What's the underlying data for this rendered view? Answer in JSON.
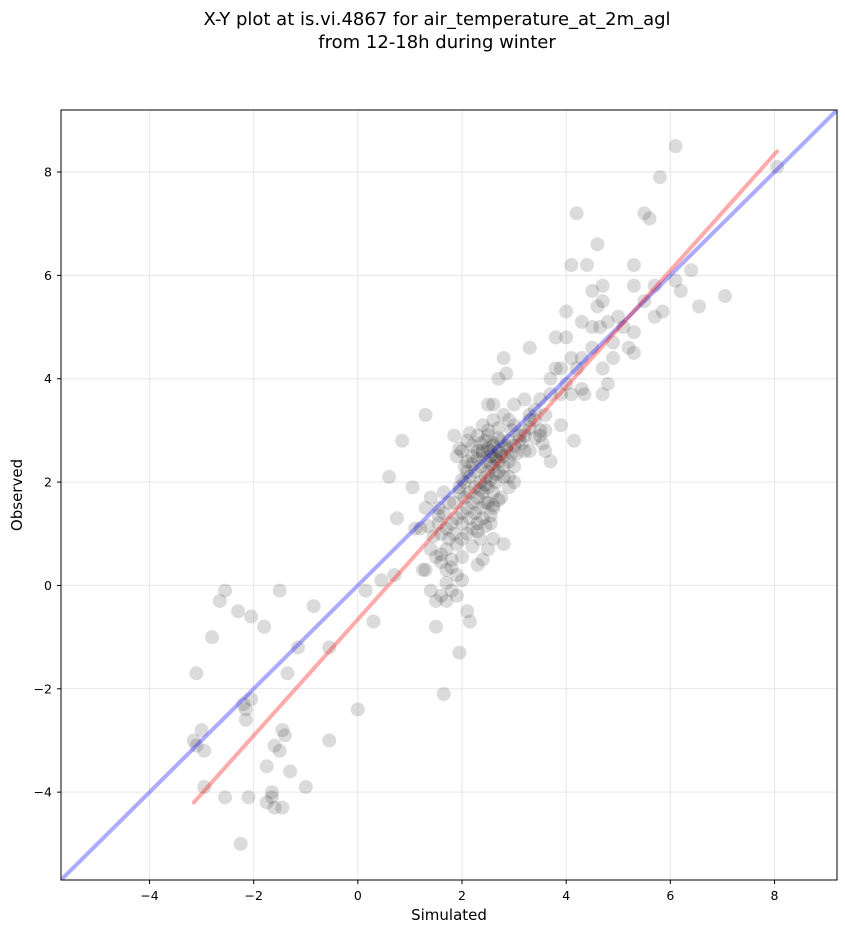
{
  "chart_data": {
    "type": "scatter",
    "title_line1": "X-Y plot at is.vi.4867 for air_temperature_at_2m_agl",
    "title_line2": "from 12-18h during winter",
    "xlabel": "Simulated",
    "ylabel": "Observed",
    "xlim": [
      -5.7,
      9.2
    ],
    "ylim": [
      -5.7,
      9.2
    ],
    "xticks": [
      -4,
      -2,
      0,
      2,
      4,
      6,
      8
    ],
    "yticks": [
      -4,
      -2,
      0,
      2,
      4,
      6,
      8
    ],
    "xtick_labels": [
      "−4",
      "−2",
      "0",
      "2",
      "4",
      "6",
      "8"
    ],
    "ytick_labels": [
      "−4",
      "−2",
      "0",
      "2",
      "4",
      "6",
      "8"
    ],
    "grid": true,
    "colors": {
      "points": "#000000",
      "identity_line": "#0000ff",
      "fit_line": "#ff0000"
    },
    "identity_line": {
      "x": [
        -5.7,
        9.2
      ],
      "y": [
        -5.7,
        9.2
      ]
    },
    "fit_line": {
      "x": [
        -3.15,
        8.05
      ],
      "y": [
        -4.2,
        8.4
      ]
    },
    "points": [
      [
        6.1,
        8.5
      ],
      [
        8.05,
        8.1
      ],
      [
        5.8,
        7.9
      ],
      [
        4.2,
        7.2
      ],
      [
        5.5,
        7.2
      ],
      [
        5.6,
        7.1
      ],
      [
        4.6,
        6.6
      ],
      [
        4.1,
        6.2
      ],
      [
        4.4,
        6.2
      ],
      [
        5.3,
        6.2
      ],
      [
        6.4,
        6.1
      ],
      [
        6.1,
        5.9
      ],
      [
        4.7,
        5.8
      ],
      [
        5.3,
        5.8
      ],
      [
        5.7,
        5.8
      ],
      [
        6.2,
        5.7
      ],
      [
        4.5,
        5.7
      ],
      [
        7.05,
        5.6
      ],
      [
        4.7,
        5.5
      ],
      [
        5.5,
        5.5
      ],
      [
        6.55,
        5.4
      ],
      [
        4.6,
        5.4
      ],
      [
        4.0,
        5.3
      ],
      [
        5.85,
        5.3
      ],
      [
        5.0,
        5.2
      ],
      [
        5.7,
        5.2
      ],
      [
        4.3,
        5.1
      ],
      [
        4.8,
        5.1
      ],
      [
        4.5,
        5.0
      ],
      [
        4.65,
        5.0
      ],
      [
        5.1,
        5.0
      ],
      [
        4.0,
        4.8
      ],
      [
        3.8,
        4.8
      ],
      [
        5.3,
        4.9
      ],
      [
        4.9,
        4.7
      ],
      [
        4.5,
        4.6
      ],
      [
        5.2,
        4.6
      ],
      [
        4.1,
        4.4
      ],
      [
        4.3,
        4.4
      ],
      [
        4.9,
        4.4
      ],
      [
        3.3,
        4.6
      ],
      [
        2.8,
        4.4
      ],
      [
        5.3,
        4.5
      ],
      [
        4.7,
        4.2
      ],
      [
        3.8,
        4.2
      ],
      [
        3.9,
        4.2
      ],
      [
        4.2,
        4.2
      ],
      [
        4.0,
        3.9
      ],
      [
        4.8,
        3.9
      ],
      [
        3.7,
        4.0
      ],
      [
        2.7,
        4.0
      ],
      [
        2.85,
        4.1
      ],
      [
        4.3,
        3.8
      ],
      [
        4.35,
        3.7
      ],
      [
        4.7,
        3.7
      ],
      [
        3.7,
        3.7
      ],
      [
        3.9,
        3.7
      ],
      [
        4.1,
        3.7
      ],
      [
        3.5,
        3.6
      ],
      [
        3.2,
        3.6
      ],
      [
        2.5,
        3.5
      ],
      [
        2.6,
        3.5
      ],
      [
        3.0,
        3.5
      ],
      [
        3.4,
        3.4
      ],
      [
        3.3,
        3.3
      ],
      [
        3.6,
        3.3
      ],
      [
        3.3,
        3.2
      ],
      [
        3.4,
        3.2
      ],
      [
        3.0,
        3.1
      ],
      [
        3.2,
        3.0
      ],
      [
        3.5,
        3.0
      ],
      [
        3.6,
        3.0
      ],
      [
        3.9,
        3.1
      ],
      [
        3.5,
        2.9
      ],
      [
        3.1,
        2.9
      ],
      [
        2.9,
        2.8
      ],
      [
        3.0,
        2.7
      ],
      [
        3.2,
        2.6
      ],
      [
        3.3,
        2.6
      ],
      [
        3.6,
        2.6
      ],
      [
        3.7,
        2.4
      ],
      [
        4.15,
        2.8
      ],
      [
        1.3,
        3.3
      ],
      [
        0.85,
        2.8
      ],
      [
        0.6,
        2.1
      ],
      [
        1.05,
        1.9
      ],
      [
        1.4,
        1.7
      ],
      [
        1.55,
        1.5
      ],
      [
        1.3,
        1.5
      ],
      [
        1.2,
        1.1
      ],
      [
        1.1,
        1.1
      ],
      [
        0.75,
        1.3
      ],
      [
        0.45,
        0.1
      ],
      [
        0.7,
        0.2
      ],
      [
        0.15,
        -0.1
      ],
      [
        0.3,
        -0.7
      ],
      [
        0.0,
        -2.4
      ],
      [
        -0.55,
        -1.2
      ],
      [
        -0.55,
        -3.0
      ],
      [
        -0.85,
        -0.4
      ],
      [
        -1.15,
        -1.2
      ],
      [
        -1.35,
        -1.7
      ],
      [
        -1.3,
        -3.6
      ],
      [
        -1.5,
        -0.1
      ],
      [
        -1.45,
        -2.8
      ],
      [
        -1.4,
        -2.9
      ],
      [
        -1.6,
        -3.1
      ],
      [
        -1.5,
        -3.2
      ],
      [
        -1.75,
        -3.5
      ],
      [
        -1.75,
        -4.2
      ],
      [
        -1.65,
        -4.0
      ],
      [
        -1.65,
        -4.1
      ],
      [
        -1.6,
        -4.3
      ],
      [
        -1.45,
        -4.3
      ],
      [
        -1.0,
        -3.9
      ],
      [
        -1.8,
        -0.8
      ],
      [
        -2.05,
        -0.6
      ],
      [
        -2.3,
        -0.5
      ],
      [
        -2.55,
        -0.1
      ],
      [
        -2.65,
        -0.3
      ],
      [
        -2.8,
        -1.0
      ],
      [
        -2.2,
        -2.3
      ],
      [
        -2.05,
        -2.2
      ],
      [
        -2.15,
        -2.4
      ],
      [
        -2.15,
        -2.6
      ],
      [
        -2.1,
        -4.1
      ],
      [
        -2.25,
        -5.0
      ],
      [
        -2.55,
        -4.1
      ],
      [
        -2.95,
        -3.9
      ],
      [
        -3.1,
        -3.1
      ],
      [
        -3.15,
        -3.0
      ],
      [
        -3.0,
        -2.8
      ],
      [
        -2.95,
        -3.2
      ],
      [
        -3.1,
        -1.7
      ],
      [
        1.85,
        2.9
      ],
      [
        2.1,
        2.8
      ],
      [
        2.3,
        2.9
      ],
      [
        2.5,
        3.0
      ],
      [
        2.2,
        2.7
      ],
      [
        2.4,
        2.6
      ],
      [
        2.6,
        2.7
      ],
      [
        2.7,
        2.6
      ],
      [
        2.8,
        2.5
      ],
      [
        2.9,
        2.4
      ],
      [
        2.55,
        2.5
      ],
      [
        2.45,
        2.4
      ],
      [
        2.35,
        2.3
      ],
      [
        2.25,
        2.2
      ],
      [
        2.15,
        2.1
      ],
      [
        2.05,
        2.0
      ],
      [
        1.95,
        1.9
      ],
      [
        2.6,
        2.3
      ],
      [
        2.7,
        2.2
      ],
      [
        2.8,
        2.3
      ],
      [
        3.0,
        2.3
      ],
      [
        2.9,
        2.1
      ],
      [
        2.65,
        2.0
      ],
      [
        2.5,
        1.9
      ],
      [
        2.4,
        1.8
      ],
      [
        2.3,
        1.7
      ],
      [
        2.2,
        1.6
      ],
      [
        2.1,
        1.5
      ],
      [
        2.0,
        1.4
      ],
      [
        1.9,
        1.3
      ],
      [
        1.8,
        1.2
      ],
      [
        2.5,
        1.6
      ],
      [
        2.6,
        1.5
      ],
      [
        2.4,
        1.3
      ],
      [
        2.3,
        1.2
      ],
      [
        2.2,
        1.1
      ],
      [
        2.1,
        1.0
      ],
      [
        2.0,
        0.9
      ],
      [
        1.9,
        0.8
      ],
      [
        1.7,
        0.7
      ],
      [
        1.6,
        0.6
      ],
      [
        1.8,
        0.5
      ],
      [
        1.7,
        0.3
      ],
      [
        1.9,
        0.2
      ],
      [
        2.0,
        0.1
      ],
      [
        1.8,
        -0.1
      ],
      [
        1.6,
        -0.2
      ],
      [
        1.5,
        -0.3
      ],
      [
        1.4,
        -0.1
      ],
      [
        1.7,
        -0.3
      ],
      [
        1.9,
        -0.2
      ],
      [
        2.1,
        -0.5
      ],
      [
        2.15,
        -0.7
      ],
      [
        1.5,
        -0.8
      ],
      [
        1.95,
        -1.3
      ],
      [
        1.65,
        -2.1
      ],
      [
        2.5,
        0.7
      ],
      [
        2.4,
        0.5
      ],
      [
        2.3,
        0.4
      ],
      [
        2.6,
        0.9
      ],
      [
        2.8,
        0.8
      ],
      [
        2.55,
        1.2
      ],
      [
        2.35,
        0.9
      ],
      [
        1.3,
        0.3
      ],
      [
        1.25,
        0.3
      ],
      [
        1.4,
        0.7
      ],
      [
        1.6,
        1.0
      ],
      [
        1.55,
        1.2
      ],
      [
        1.7,
        1.1
      ],
      [
        1.85,
        1.6
      ],
      [
        1.95,
        1.8
      ],
      [
        2.05,
        2.3
      ],
      [
        1.9,
        2.5
      ],
      [
        2.0,
        2.6
      ],
      [
        2.1,
        2.4
      ],
      [
        2.2,
        2.5
      ],
      [
        2.3,
        2.6
      ],
      [
        2.45,
        2.8
      ],
      [
        2.55,
        2.6
      ],
      [
        2.65,
        2.5
      ],
      [
        2.75,
        2.8
      ],
      [
        2.85,
        2.7
      ],
      [
        2.95,
        3.0
      ],
      [
        3.1,
        2.8
      ],
      [
        3.2,
        2.9
      ],
      [
        2.6,
        3.2
      ],
      [
        2.4,
        3.1
      ],
      [
        2.5,
        2.2
      ],
      [
        2.45,
        2.1
      ],
      [
        2.35,
        2.0
      ],
      [
        2.25,
        1.9
      ],
      [
        2.15,
        1.8
      ],
      [
        2.05,
        1.7
      ],
      [
        2.7,
        2.4
      ],
      [
        2.8,
        2.1
      ],
      [
        3.0,
        2.0
      ],
      [
        2.9,
        1.9
      ],
      [
        2.75,
        1.7
      ],
      [
        2.6,
        1.8
      ],
      [
        2.45,
        1.6
      ],
      [
        2.35,
        1.5
      ],
      [
        2.25,
        1.4
      ],
      [
        2.15,
        1.3
      ],
      [
        2.0,
        1.2
      ],
      [
        1.85,
        1.0
      ],
      [
        1.75,
        0.9
      ],
      [
        1.65,
        1.4
      ],
      [
        1.75,
        1.6
      ],
      [
        1.65,
        1.8
      ],
      [
        2.55,
        2.35
      ],
      [
        2.65,
        2.45
      ],
      [
        2.75,
        2.55
      ],
      [
        2.85,
        2.65
      ],
      [
        2.3,
        2.45
      ],
      [
        2.4,
        2.55
      ],
      [
        2.5,
        2.65
      ],
      [
        2.6,
        2.75
      ],
      [
        2.7,
        2.85
      ],
      [
        2.2,
        2.35
      ],
      [
        2.1,
        2.2
      ],
      [
        2.0,
        2.05
      ],
      [
        3.05,
        2.55
      ],
      [
        3.15,
        2.75
      ],
      [
        2.95,
        2.55
      ],
      [
        2.55,
        2.05
      ],
      [
        2.45,
        1.95
      ],
      [
        2.35,
        1.85
      ],
      [
        2.65,
        2.15
      ],
      [
        2.9,
        3.2
      ],
      [
        2.8,
        3.3
      ],
      [
        2.7,
        3.05
      ],
      [
        3.3,
        3.05
      ],
      [
        3.4,
        2.85
      ],
      [
        3.55,
        2.75
      ],
      [
        1.7,
        0.05
      ],
      [
        1.8,
        0.35
      ],
      [
        2.0,
        0.55
      ],
      [
        2.2,
        0.75
      ],
      [
        2.3,
        1.05
      ],
      [
        2.45,
        1.15
      ],
      [
        2.55,
        1.35
      ],
      [
        2.6,
        1.55
      ],
      [
        2.7,
        1.65
      ],
      [
        1.6,
        0.45
      ],
      [
        1.5,
        0.55
      ],
      [
        1.45,
        0.95
      ],
      [
        1.35,
        1.15
      ],
      [
        1.55,
        1.35
      ],
      [
        2.15,
        2.95
      ],
      [
        1.95,
        2.65
      ],
      [
        2.35,
        2.75
      ],
      [
        2.5,
        2.9
      ]
    ]
  }
}
